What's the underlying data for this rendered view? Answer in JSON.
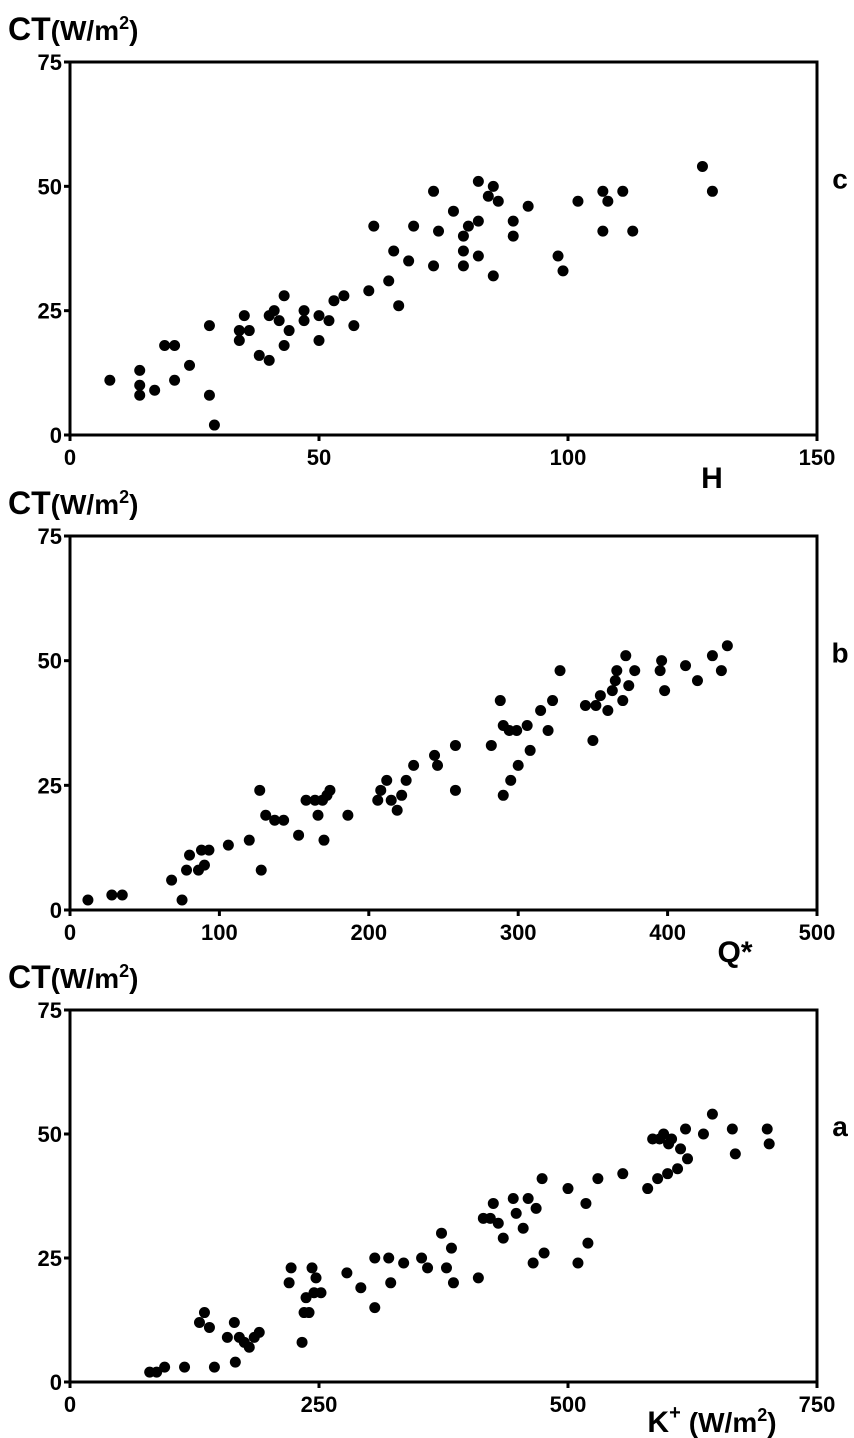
{
  "chart_data": [
    {
      "type": "scatter",
      "panel": "c",
      "ylabel": "CT",
      "yunit_base": "(W/m",
      "yunit_sup": "2",
      "yunit_close": ")",
      "xlabel": "H",
      "xunit_base": "",
      "xunit_sup": "",
      "xunit_close": "",
      "xlim": [
        0,
        150
      ],
      "ylim": [
        0,
        75
      ],
      "xticks": [
        0,
        50,
        100,
        150
      ],
      "yticks": [
        0,
        25,
        50,
        75
      ],
      "grid": false,
      "legend": "none",
      "points": [
        [
          8,
          11
        ],
        [
          14,
          13
        ],
        [
          14,
          10
        ],
        [
          14,
          8
        ],
        [
          17,
          9
        ],
        [
          19,
          18
        ],
        [
          21,
          18
        ],
        [
          21,
          11
        ],
        [
          24,
          14
        ],
        [
          28,
          22
        ],
        [
          28,
          8
        ],
        [
          29,
          2
        ],
        [
          34,
          21
        ],
        [
          34,
          19
        ],
        [
          35,
          24
        ],
        [
          36,
          21
        ],
        [
          38,
          16
        ],
        [
          40,
          24
        ],
        [
          40,
          15
        ],
        [
          41,
          25
        ],
        [
          42,
          23
        ],
        [
          43,
          28
        ],
        [
          43,
          18
        ],
        [
          44,
          21
        ],
        [
          47,
          25
        ],
        [
          47,
          23
        ],
        [
          50,
          24
        ],
        [
          50,
          19
        ],
        [
          52,
          23
        ],
        [
          53,
          27
        ],
        [
          55,
          28
        ],
        [
          57,
          22
        ],
        [
          60,
          29
        ],
        [
          61,
          42
        ],
        [
          64,
          31
        ],
        [
          65,
          37
        ],
        [
          66,
          26
        ],
        [
          68,
          35
        ],
        [
          69,
          42
        ],
        [
          73,
          34
        ],
        [
          73,
          49
        ],
        [
          74,
          41
        ],
        [
          77,
          45
        ],
        [
          79,
          40
        ],
        [
          79,
          37
        ],
        [
          79,
          34
        ],
        [
          80,
          42
        ],
        [
          82,
          43
        ],
        [
          82,
          36
        ],
        [
          82,
          51
        ],
        [
          84,
          48
        ],
        [
          85,
          50
        ],
        [
          85,
          32
        ],
        [
          86,
          47
        ],
        [
          89,
          43
        ],
        [
          89,
          40
        ],
        [
          92,
          46
        ],
        [
          98,
          36
        ],
        [
          99,
          33
        ],
        [
          102,
          47
        ],
        [
          107,
          49
        ],
        [
          107,
          41
        ],
        [
          108,
          47
        ],
        [
          111,
          49
        ],
        [
          113,
          41
        ],
        [
          127,
          54
        ],
        [
          129,
          49
        ]
      ]
    },
    {
      "type": "scatter",
      "panel": "b",
      "ylabel": "CT",
      "yunit_base": "(W/m",
      "yunit_sup": "2",
      "yunit_close": ")",
      "xlabel": "Q*",
      "xunit_base": "",
      "xunit_sup": "",
      "xunit_close": "",
      "xlim": [
        0,
        500
      ],
      "ylim": [
        0,
        75
      ],
      "xticks": [
        0,
        100,
        200,
        300,
        400,
        500
      ],
      "yticks": [
        0,
        25,
        50,
        75
      ],
      "grid": false,
      "legend": "none",
      "points": [
        [
          12,
          2
        ],
        [
          28,
          3
        ],
        [
          35,
          3
        ],
        [
          68,
          6
        ],
        [
          75,
          2
        ],
        [
          78,
          8
        ],
        [
          80,
          11
        ],
        [
          86,
          8
        ],
        [
          88,
          12
        ],
        [
          90,
          9
        ],
        [
          93,
          12
        ],
        [
          106,
          13
        ],
        [
          120,
          14
        ],
        [
          127,
          24
        ],
        [
          128,
          8
        ],
        [
          131,
          19
        ],
        [
          137,
          18
        ],
        [
          143,
          18
        ],
        [
          153,
          15
        ],
        [
          158,
          22
        ],
        [
          164,
          22
        ],
        [
          166,
          19
        ],
        [
          169,
          22
        ],
        [
          170,
          14
        ],
        [
          172,
          23
        ],
        [
          174,
          24
        ],
        [
          186,
          19
        ],
        [
          206,
          22
        ],
        [
          208,
          24
        ],
        [
          212,
          26
        ],
        [
          215,
          22
        ],
        [
          219,
          20
        ],
        [
          222,
          23
        ],
        [
          225,
          26
        ],
        [
          230,
          29
        ],
        [
          244,
          31
        ],
        [
          246,
          29
        ],
        [
          258,
          24
        ],
        [
          258,
          33
        ],
        [
          282,
          33
        ],
        [
          288,
          42
        ],
        [
          290,
          37
        ],
        [
          290,
          23
        ],
        [
          294,
          36
        ],
        [
          295,
          26
        ],
        [
          299,
          36
        ],
        [
          300,
          29
        ],
        [
          306,
          37
        ],
        [
          308,
          32
        ],
        [
          315,
          40
        ],
        [
          320,
          36
        ],
        [
          323,
          42
        ],
        [
          328,
          48
        ],
        [
          345,
          41
        ],
        [
          350,
          34
        ],
        [
          352,
          41
        ],
        [
          355,
          43
        ],
        [
          360,
          40
        ],
        [
          363,
          44
        ],
        [
          365,
          46
        ],
        [
          366,
          48
        ],
        [
          370,
          42
        ],
        [
          372,
          51
        ],
        [
          374,
          45
        ],
        [
          378,
          48
        ],
        [
          395,
          48
        ],
        [
          396,
          50
        ],
        [
          398,
          44
        ],
        [
          412,
          49
        ],
        [
          420,
          46
        ],
        [
          430,
          51
        ],
        [
          436,
          48
        ],
        [
          440,
          53
        ]
      ]
    },
    {
      "type": "scatter",
      "panel": "a",
      "ylabel": "CT",
      "yunit_base": "(W/m",
      "yunit_sup": "2",
      "yunit_close": ")",
      "xlabel": "K",
      "xlabel_sup": "+",
      "xunit_base": "(W/m",
      "xunit_sup": "2",
      "xunit_close": ")",
      "xlim": [
        0,
        750
      ],
      "ylim": [
        0,
        75
      ],
      "xticks": [
        0,
        250,
        500,
        750
      ],
      "yticks": [
        0,
        25,
        50,
        75
      ],
      "grid": false,
      "legend": "none",
      "points": [
        [
          80,
          2
        ],
        [
          87,
          2
        ],
        [
          95,
          3
        ],
        [
          115,
          3
        ],
        [
          130,
          12
        ],
        [
          135,
          14
        ],
        [
          140,
          11
        ],
        [
          145,
          3
        ],
        [
          158,
          9
        ],
        [
          165,
          12
        ],
        [
          166,
          4
        ],
        [
          170,
          9
        ],
        [
          175,
          8
        ],
        [
          180,
          7
        ],
        [
          185,
          9
        ],
        [
          190,
          10
        ],
        [
          220,
          20
        ],
        [
          222,
          23
        ],
        [
          233,
          8
        ],
        [
          235,
          14
        ],
        [
          237,
          17
        ],
        [
          240,
          14
        ],
        [
          243,
          23
        ],
        [
          245,
          18
        ],
        [
          247,
          21
        ],
        [
          252,
          18
        ],
        [
          278,
          22
        ],
        [
          292,
          19
        ],
        [
          306,
          25
        ],
        [
          306,
          15
        ],
        [
          320,
          25
        ],
        [
          322,
          20
        ],
        [
          335,
          24
        ],
        [
          353,
          25
        ],
        [
          359,
          23
        ],
        [
          373,
          30
        ],
        [
          378,
          23
        ],
        [
          383,
          27
        ],
        [
          385,
          20
        ],
        [
          410,
          21
        ],
        [
          415,
          33
        ],
        [
          422,
          33
        ],
        [
          425,
          36
        ],
        [
          430,
          32
        ],
        [
          435,
          29
        ],
        [
          445,
          37
        ],
        [
          448,
          34
        ],
        [
          455,
          31
        ],
        [
          460,
          37
        ],
        [
          465,
          24
        ],
        [
          468,
          35
        ],
        [
          474,
          41
        ],
        [
          476,
          26
        ],
        [
          500,
          39
        ],
        [
          510,
          24
        ],
        [
          518,
          36
        ],
        [
          520,
          28
        ],
        [
          530,
          41
        ],
        [
          555,
          42
        ],
        [
          580,
          39
        ],
        [
          585,
          49
        ],
        [
          590,
          41
        ],
        [
          592,
          49
        ],
        [
          596,
          50
        ],
        [
          600,
          42
        ],
        [
          601,
          48
        ],
        [
          604,
          49
        ],
        [
          610,
          43
        ],
        [
          613,
          47
        ],
        [
          618,
          51
        ],
        [
          620,
          45
        ],
        [
          636,
          50
        ],
        [
          645,
          54
        ],
        [
          665,
          51
        ],
        [
          668,
          46
        ],
        [
          700,
          51
        ],
        [
          702,
          48
        ]
      ]
    }
  ]
}
